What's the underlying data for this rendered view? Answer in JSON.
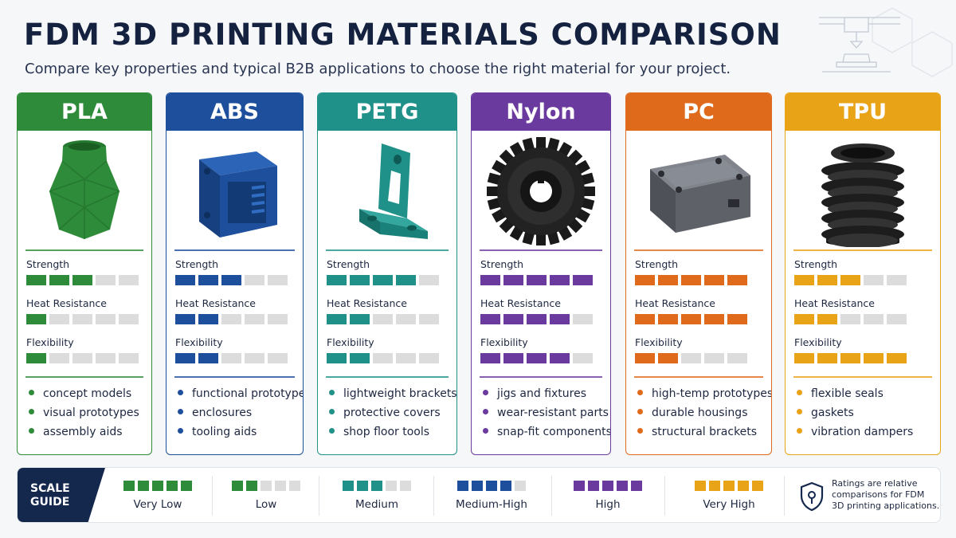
{
  "header": {
    "title": "FDM 3D PRINTING MATERIALS COMPARISON",
    "subtitle": "Compare key properties and typical B2B applications to choose the right material for your project."
  },
  "rating_labels": {
    "strength": "Strength",
    "heat": "Heat Resistance",
    "flex": "Flexibility"
  },
  "materials": [
    {
      "name": "PLA",
      "color": "#2e8b3a",
      "icon": "vase-icon",
      "strength": 3,
      "heat": 1,
      "flex": 1,
      "apps": [
        "concept models",
        "visual prototypes",
        "assembly aids"
      ]
    },
    {
      "name": "ABS",
      "color": "#1d4f9c",
      "icon": "enclosure-icon",
      "strength": 3,
      "heat": 2,
      "flex": 2,
      "apps": [
        "functional prototypes",
        "enclosures",
        "tooling aids"
      ]
    },
    {
      "name": "PETG",
      "color": "#1f9189",
      "icon": "bracket-icon",
      "strength": 4,
      "heat": 2,
      "flex": 2,
      "apps": [
        "lightweight brackets",
        "protective covers",
        "shop floor tools"
      ]
    },
    {
      "name": "Nylon",
      "color": "#6b3a9e",
      "icon": "gear-icon",
      "strength": 5,
      "heat": 4,
      "flex": 4,
      "apps": [
        "jigs and fixtures",
        "wear-resistant parts",
        "snap-fit components"
      ]
    },
    {
      "name": "PC",
      "color": "#e06a1b",
      "icon": "housing-icon",
      "strength": 5,
      "heat": 5,
      "flex": 2,
      "apps": [
        "high-temp prototypes",
        "durable housings",
        "structural brackets"
      ]
    },
    {
      "name": "TPU",
      "color": "#e8a317",
      "icon": "bellows-icon",
      "strength": 3,
      "heat": 2,
      "flex": 5,
      "apps": [
        "flexible seals",
        "gaskets",
        "vibration dampers"
      ]
    }
  ],
  "scale": {
    "tag_line1": "SCALE",
    "tag_line2": "GUIDE",
    "levels": [
      {
        "label": "Very Low",
        "color": "#2e8b3a"
      },
      {
        "label": "Low",
        "color": "#2e8b3a"
      },
      {
        "label": "Medium",
        "color": "#1f9189"
      },
      {
        "label": "Medium-High",
        "color": "#1d4f9c"
      },
      {
        "label": "High",
        "color": "#6b3a9e"
      },
      {
        "label": "Very High",
        "color": "#e8a317"
      }
    ],
    "note_line1": "Ratings are relative",
    "note_line2": "comparisons for FDM",
    "note_line3": "3D printing applications."
  }
}
